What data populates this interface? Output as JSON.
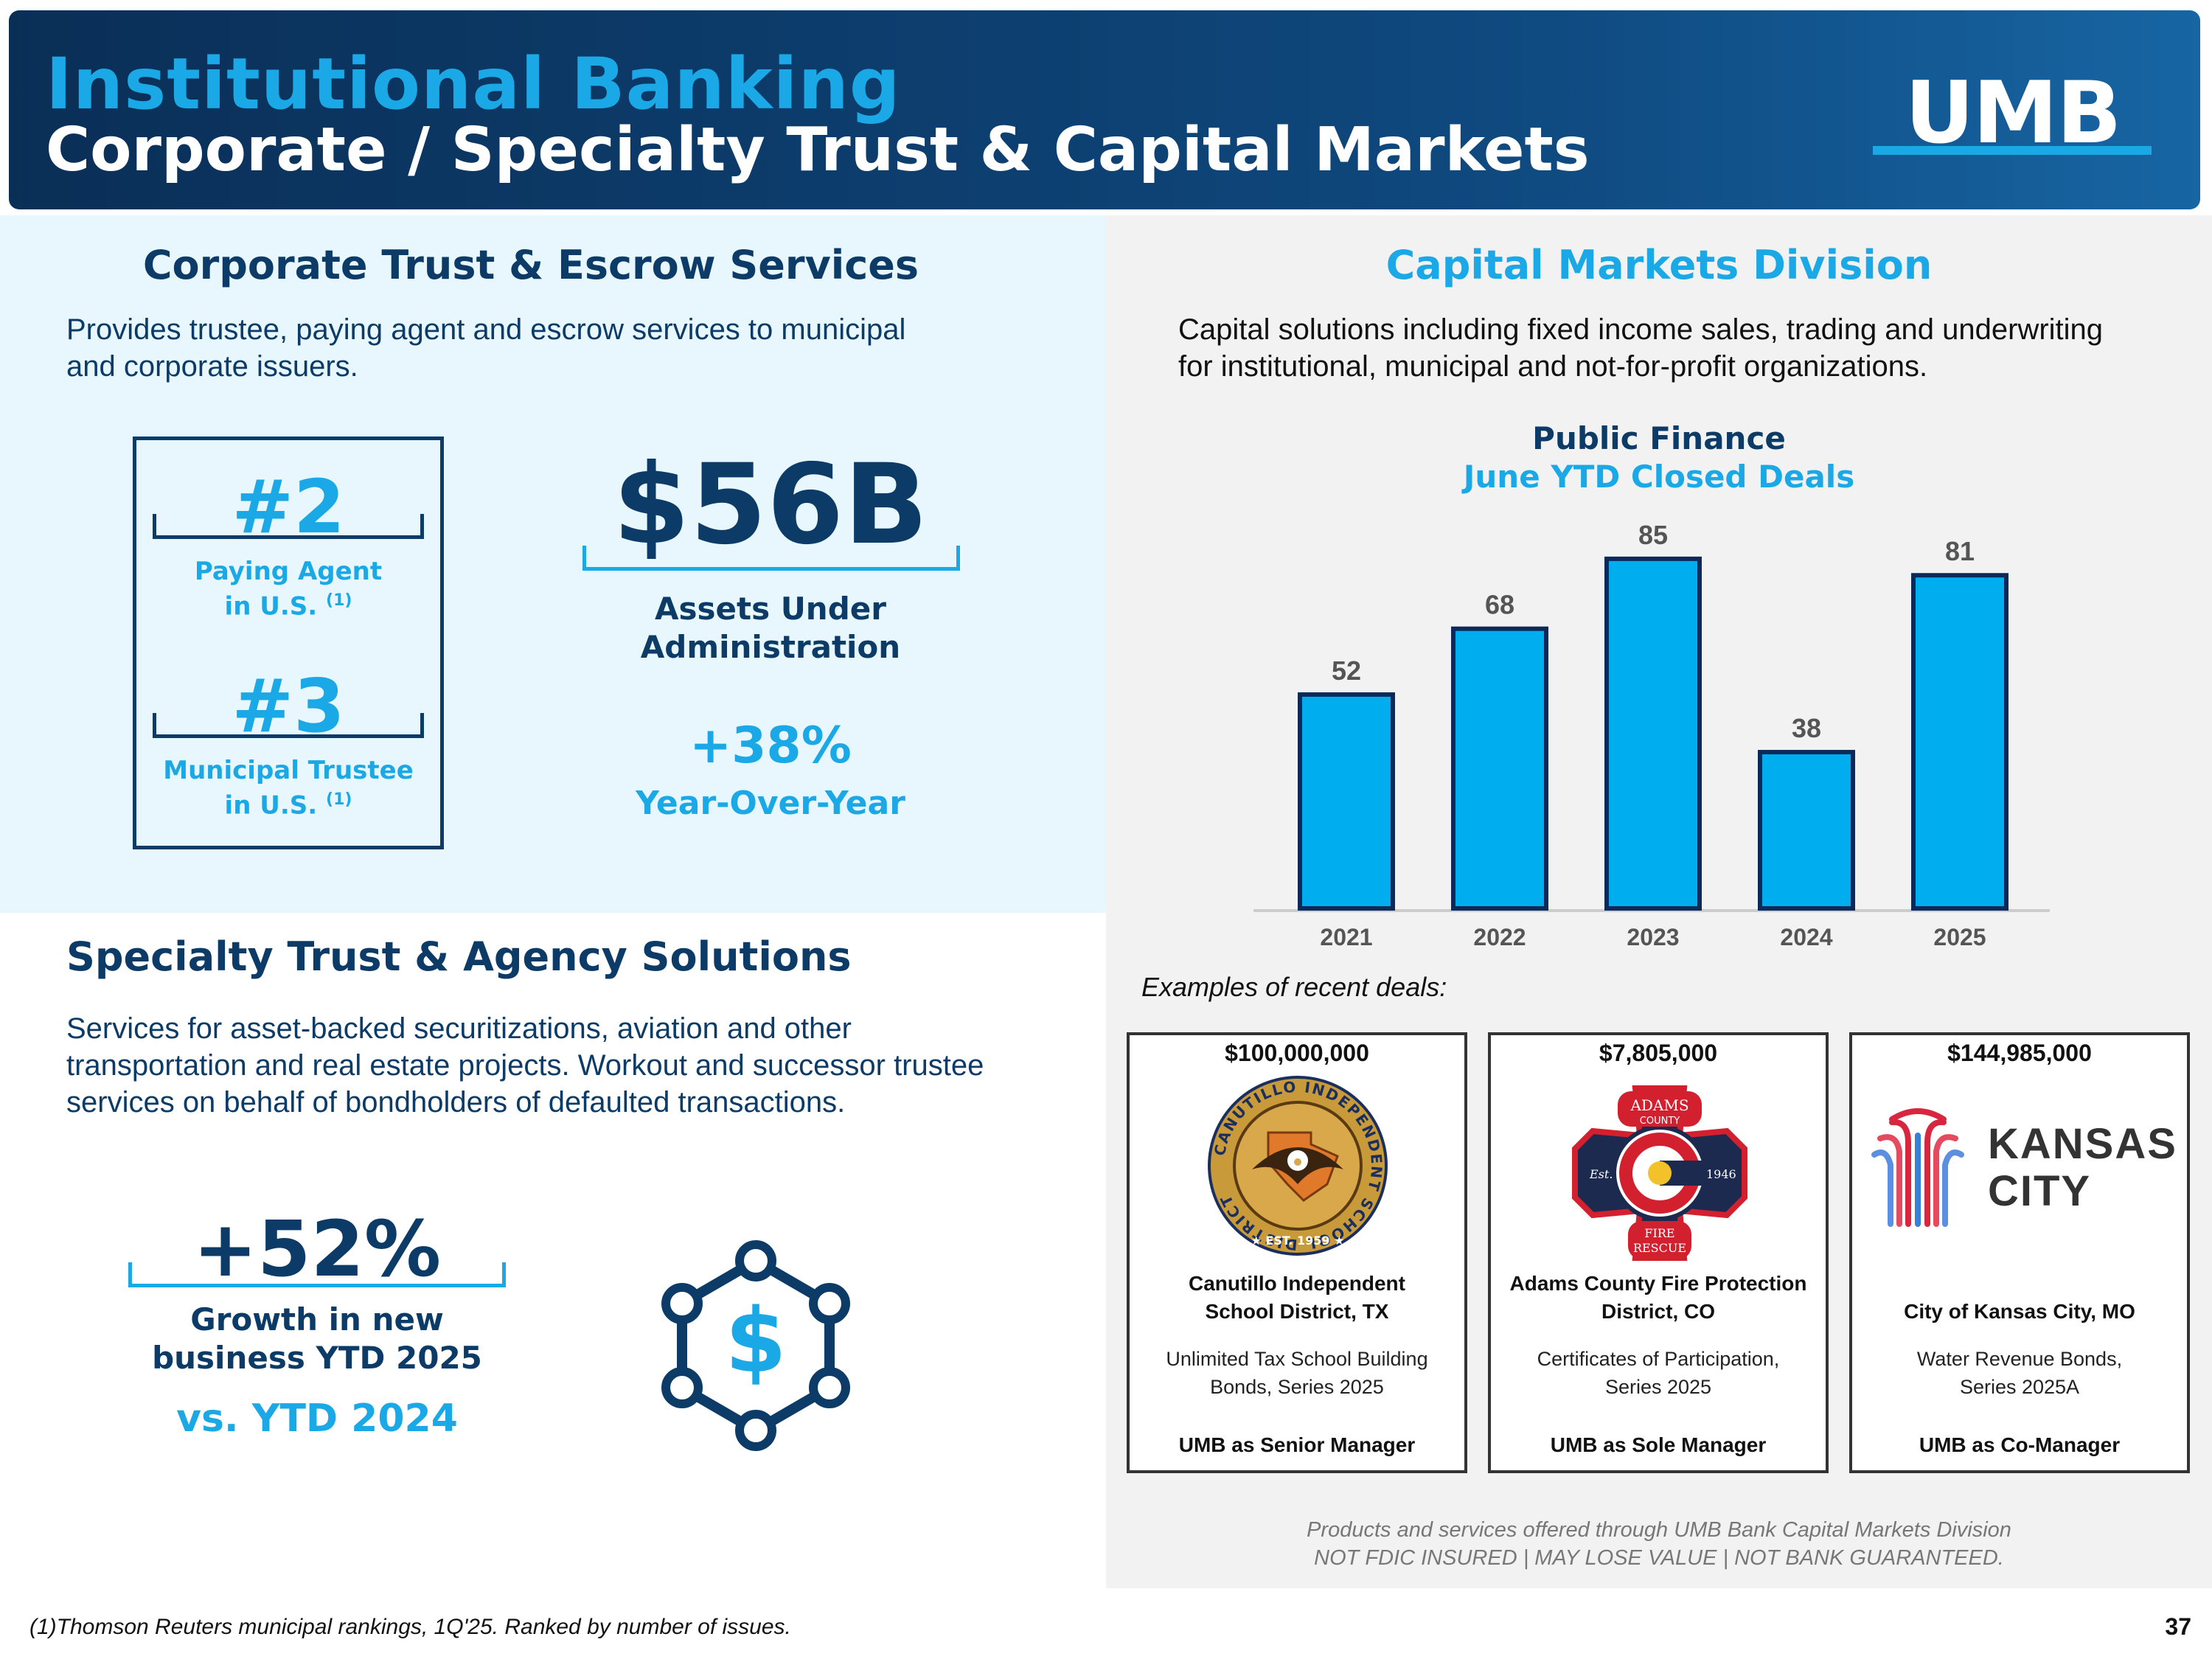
{
  "header": {
    "title": "Institutional Banking",
    "subtitle": "Corporate / Specialty Trust & Capital Markets",
    "logo_text": "UMB"
  },
  "corporate_trust": {
    "title": "Corporate Trust & Escrow Services",
    "description_line1": "Provides trustee, paying agent and escrow services to municipal",
    "description_line2": "and corporate issuers.",
    "rank1": {
      "value": "#2",
      "label_line1": "Paying Agent",
      "label_line2": "in U.S.",
      "footnote_mark": "(1)"
    },
    "rank2": {
      "value": "#3",
      "label_line1": "Municipal Trustee",
      "label_line2": "in U.S.",
      "footnote_mark": "(1)"
    },
    "aua_value": "$56B",
    "aua_label_line1": "Assets Under",
    "aua_label_line2": "Administration",
    "yoy_value": "+38%",
    "yoy_label": "Year-Over-Year"
  },
  "specialty_trust": {
    "title": "Specialty Trust & Agency Solutions",
    "description_line1": "Services for asset-backed securitizations, aviation and other",
    "description_line2": "transportation and real estate projects. Workout and successor trustee",
    "description_line3": "services on behalf of bondholders of defaulted transactions.",
    "growth_value": "+52%",
    "growth_label_line1": "Growth in new",
    "growth_label_line2": "business YTD 2025",
    "comparison": "vs. YTD 2024",
    "icon": "dollar-network-icon"
  },
  "capital_markets": {
    "title": "Capital Markets Division",
    "description_line1": "Capital solutions including fixed income sales, trading and underwriting",
    "description_line2": "for institutional, municipal and not-for-profit organizations.",
    "examples_label": "Examples of recent deals:",
    "disclaimer_line1": "Products and services offered through UMB Bank Capital Markets Division",
    "disclaimer_line2": "NOT FDIC INSURED | MAY LOSE VALUE  | NOT BANK GUARANTEED."
  },
  "chart_data": {
    "type": "bar",
    "title": "Public Finance",
    "subtitle": "June YTD Closed Deals",
    "categories": [
      "2021",
      "2022",
      "2023",
      "2024",
      "2025"
    ],
    "values": [
      52,
      68,
      85,
      38,
      81
    ],
    "ylim": [
      0,
      90
    ],
    "grid": false,
    "colors": {
      "bar": "#00aeef",
      "bar_border": "#0b2a5a"
    }
  },
  "deals": [
    {
      "amount": "$100,000,000",
      "logo": "canutillo-isd-seal",
      "name_line1": "Canutillo Independent",
      "name_line2": "School District, TX",
      "desc_line1": "Unlimited Tax School Building",
      "desc_line2": "Bonds, Series 2025",
      "role": "UMB as Senior Manager"
    },
    {
      "amount": "$7,805,000",
      "logo": "adams-county-fire-rescue-badge",
      "name_line1": "Adams County Fire Protection",
      "name_line2": "District, CO",
      "desc_line1": "Certificates of Participation,",
      "desc_line2": "Series 2025",
      "role": "UMB as Sole Manager"
    },
    {
      "amount": "$144,985,000",
      "logo": "kansas-city-logo",
      "logo_text_line1": "KANSAS",
      "logo_text_line2": "CITY",
      "name_line1": "",
      "name_line2": "City of Kansas City, MO",
      "desc_line1": "Water Revenue Bonds,",
      "desc_line2": "Series 2025A",
      "role": "UMB as Co-Manager"
    }
  ],
  "footer": {
    "footnote": "(1)Thomson Reuters municipal rankings, 1Q'25. Ranked by number of issues.",
    "page_number": "37"
  },
  "seals": {
    "canutillo_ring_text": "CANUTILLO INDEPENDENT SCHOOL DISTRICT",
    "canutillo_est": "★ EST. 1959 ★",
    "adams_top": "ADAMS",
    "adams_county": "COUNTY",
    "adams_est_left": "Est.",
    "adams_est_right": "1946",
    "adams_bottom1": "FIRE",
    "adams_bottom2": "RESCUE"
  },
  "colors": {
    "navy": "#0b3b66",
    "accent_blue": "#1aa9e6",
    "left_panel_bg": "#e8f7fd",
    "right_panel_bg": "#f2f2f2"
  }
}
